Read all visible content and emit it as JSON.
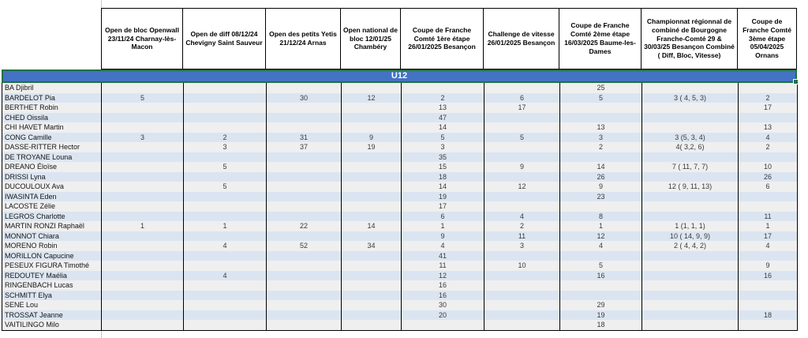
{
  "sheet": {
    "banner": "U12",
    "columns": [
      "Open de bloc Openwall 23/11/24 Charnay-lès-Macon",
      "Open de diff  08/12/24 Chevigny Saint Sauveur",
      "Open des petits Yetis 21/12/24 Arnas",
      "Open national de bloc 12/01/25 Chambéry",
      "Coupe de Franche Comté 1ère étape 26/01/2025 Besançon",
      "Challenge de vitesse 26/01/2025 Besançon",
      "Coupe de Franche Comté 2ème étape 16/03/2025 Baume-les-Dames",
      "Championnat régionnal de combiné de Bourgogne Franche-Comté 29 & 30/03/25 Besançon Combiné ( Diff, Bloc, Vitesse)",
      "Coupe de Franche Comté 3ème étape 05/04/2025 Ornans"
    ],
    "rows": [
      {
        "name": "BA Djibril",
        "values": [
          "",
          "",
          "",
          "",
          "",
          "",
          "25",
          "",
          ""
        ]
      },
      {
        "name": "BARDELOT Pia",
        "values": [
          "5",
          "",
          "30",
          "12",
          "2",
          "6",
          "5",
          "3 ( 4, 5, 3)",
          "2"
        ]
      },
      {
        "name": "BERTHET Robin",
        "values": [
          "",
          "",
          "",
          "",
          "13",
          "17",
          "",
          "",
          "17"
        ]
      },
      {
        "name": "CHED Oissila",
        "values": [
          "",
          "",
          "",
          "",
          "47",
          "",
          "",
          "",
          ""
        ]
      },
      {
        "name": "CHI HAVET Martin",
        "values": [
          "",
          "",
          "",
          "",
          "14",
          "",
          "13",
          "",
          "13"
        ]
      },
      {
        "name": "CONG Camille",
        "values": [
          "3",
          "2",
          "31",
          "9",
          "5",
          "5",
          "3",
          "3 (5, 3, 4)",
          "4"
        ]
      },
      {
        "name": "DASSE-RITTER Hector",
        "values": [
          "",
          "3",
          "37",
          "19",
          "3",
          "",
          "2",
          "4( 3,2, 6)",
          "2"
        ]
      },
      {
        "name": "DE TROYANE Louna",
        "values": [
          "",
          "",
          "",
          "",
          "35",
          "",
          "",
          "",
          ""
        ]
      },
      {
        "name": "DREANO Éloïse",
        "values": [
          "",
          "5",
          "",
          "",
          "15",
          "9",
          "14",
          "7 ( 11, 7, 7)",
          "10"
        ]
      },
      {
        "name": "DRISSI Lyna",
        "values": [
          "",
          "",
          "",
          "",
          "18",
          "",
          "26",
          "",
          "26"
        ]
      },
      {
        "name": "DUCOULOUX Ava",
        "values": [
          "",
          "5",
          "",
          "",
          "14",
          "12",
          "9",
          "12 ( 9, 11, 13)",
          "6"
        ]
      },
      {
        "name": "IWASINTA Eden",
        "values": [
          "",
          "",
          "",
          "",
          "19",
          "",
          "23",
          "",
          ""
        ]
      },
      {
        "name": "LACOSTE Zélie",
        "values": [
          "",
          "",
          "",
          "",
          "17",
          "",
          "",
          "",
          ""
        ]
      },
      {
        "name": "LEGROS Charlotte",
        "values": [
          "",
          "",
          "",
          "",
          "6",
          "4",
          "8",
          "",
          "11"
        ]
      },
      {
        "name": "MARTIN RONZI Raphaël",
        "values": [
          "1",
          "1",
          "22",
          "14",
          "1",
          "2",
          "1",
          "1 (1, 1, 1)",
          "1"
        ]
      },
      {
        "name": "MONNOT Chiara",
        "values": [
          "",
          "",
          "",
          "",
          "9",
          "11",
          "12",
          "10 ( 14, 9, 9)",
          "17"
        ]
      },
      {
        "name": "MORENO Robin",
        "values": [
          "",
          "4",
          "52",
          "34",
          "4",
          "3",
          "4",
          "2 ( 4, 4, 2)",
          "4"
        ]
      },
      {
        "name": "MORILLON Capucine",
        "values": [
          "",
          "",
          "",
          "",
          "41",
          "",
          "",
          "",
          ""
        ]
      },
      {
        "name": "PESEUX FIGURA Timothé",
        "values": [
          "",
          "",
          "",
          "",
          "11",
          "10",
          "5",
          "",
          "9"
        ]
      },
      {
        "name": "REDOUTEY Maélia",
        "values": [
          "",
          "4",
          "",
          "",
          "12",
          "",
          "16",
          "",
          "16"
        ]
      },
      {
        "name": "RINGENBACH Lucas",
        "values": [
          "",
          "",
          "",
          "",
          "16",
          "",
          "",
          "",
          ""
        ]
      },
      {
        "name": "SCHMITT Elya",
        "values": [
          "",
          "",
          "",
          "",
          "16",
          "",
          "",
          "",
          ""
        ]
      },
      {
        "name": "SENE Lou",
        "values": [
          "",
          "",
          "",
          "",
          "30",
          "",
          "29",
          "",
          ""
        ]
      },
      {
        "name": "TROSSAT Jeanne",
        "values": [
          "",
          "",
          "",
          "",
          "20",
          "",
          "19",
          "",
          "18"
        ]
      },
      {
        "name": "VAITILINGO Milo",
        "values": [
          "",
          "",
          "",
          "",
          "",
          "",
          "18",
          "",
          ""
        ]
      }
    ],
    "colors": {
      "banner_bg": "#4472c4",
      "banner_text": "#ffffff",
      "selection_green": "#1e7145",
      "stripe_gray": "#efefef",
      "stripe_blue": "#dbe5f1",
      "cell_border": "#000000"
    }
  }
}
